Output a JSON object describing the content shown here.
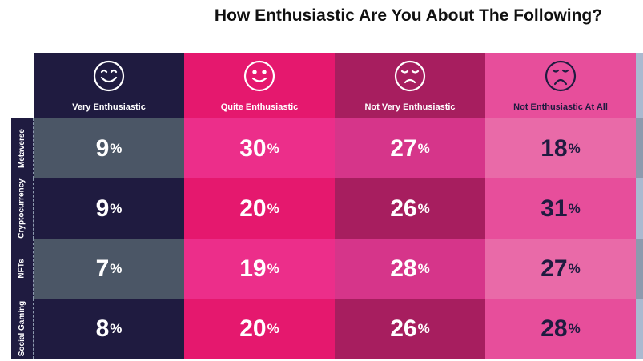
{
  "chart_data": {
    "type": "table",
    "title": "How Enthusiastic Are You About The Following?",
    "columns": [
      {
        "label": "Very Enthusiastic",
        "icon": "big-grin-face-icon"
      },
      {
        "label": "Quite Enthusiastic",
        "icon": "smile-face-icon"
      },
      {
        "label": "Not Very Enthusiastic",
        "icon": "sad-face-icon"
      },
      {
        "label": "Not Enthusiastic At All",
        "icon": "frown-face-icon"
      }
    ],
    "rows": [
      {
        "label": "Metaverse",
        "values": [
          9,
          30,
          27,
          18
        ]
      },
      {
        "label": "Cryptocurrency",
        "values": [
          9,
          20,
          26,
          31
        ]
      },
      {
        "label": "NFTs",
        "values": [
          7,
          19,
          28,
          27
        ]
      },
      {
        "label": "Social Gaming",
        "values": [
          8,
          20,
          26,
          28
        ]
      }
    ],
    "unit": "%",
    "colors": {
      "header": [
        "#1f1b40",
        "#e5186e",
        "#a71e5f",
        "#e74e9b",
        "#aab9d0"
      ],
      "odd": [
        "#4b5666",
        "#ec2e8a",
        "#d6358a",
        "#e96aa8",
        "#8d9aae"
      ],
      "even": [
        "#1f1b40",
        "#e5186e",
        "#a71e5f",
        "#e74e9b",
        "#aab9d0"
      ],
      "label_bg": "#1f1b40"
    }
  }
}
